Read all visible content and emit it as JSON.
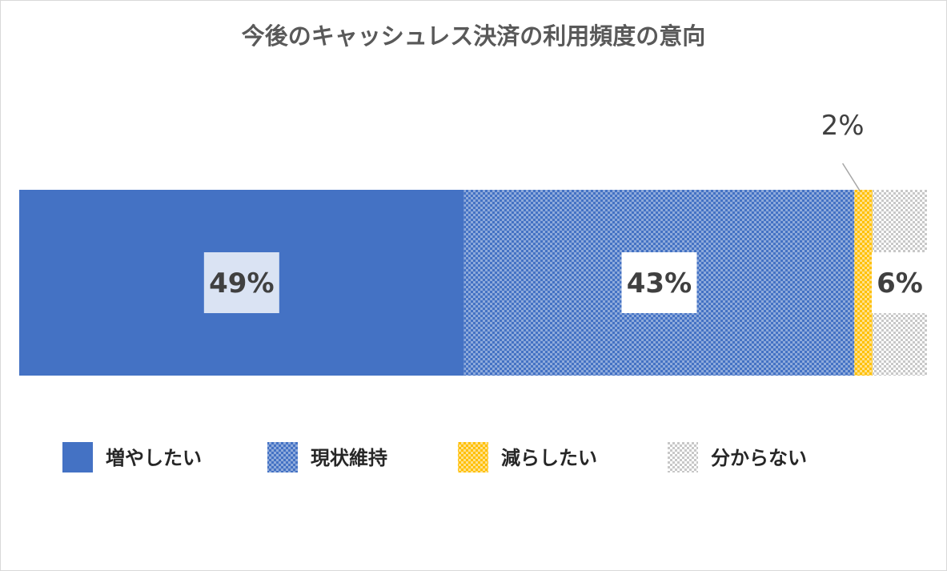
{
  "chart_data": {
    "type": "bar",
    "orientation": "horizontal-stacked-100",
    "title": "今後のキャッシュレス決済の利用頻度の意向",
    "series": [
      {
        "name": "増やしたい",
        "value": 49,
        "label": "49%",
        "color": "#4472c4",
        "pattern": "solid"
      },
      {
        "name": "現状維持",
        "value": 43,
        "label": "43%",
        "color": "#4472c4",
        "pattern": "checker"
      },
      {
        "name": "減らしたい",
        "value": 2,
        "label": "2%",
        "color": "#ffc000",
        "pattern": "checker"
      },
      {
        "name": "分からない",
        "value": 6,
        "label": "6%",
        "color": "#bfbfbf",
        "pattern": "checker"
      }
    ],
    "xlim": [
      0,
      100
    ],
    "legend_position": "bottom",
    "grid": false
  }
}
